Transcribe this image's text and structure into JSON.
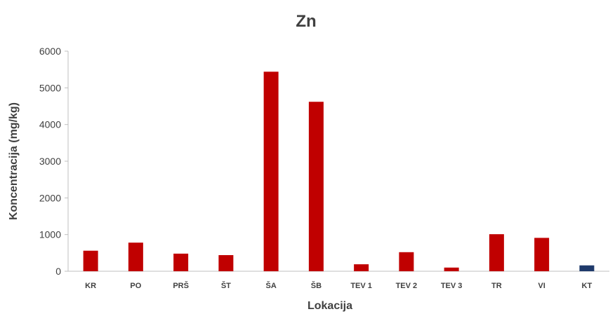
{
  "chart_data": {
    "type": "bar",
    "title": "Zn",
    "xlabel": "Lokacija",
    "ylabel": "Koncentracija (mg/kg)",
    "ylim": [
      0,
      6000
    ],
    "yticks": [
      0,
      1000,
      2000,
      3000,
      4000,
      5000,
      6000
    ],
    "ytick_labels": [
      "0",
      "1000",
      "2000",
      "3000",
      "4000",
      "5000",
      "6000"
    ],
    "categories": [
      "KR",
      "PO",
      "PRŠ",
      "ŠT",
      "ŠA",
      "ŠB",
      "TEV 1",
      "TEV 2",
      "TEV 3",
      "TR",
      "VI",
      "KT"
    ],
    "values": [
      560,
      780,
      480,
      440,
      5440,
      4620,
      190,
      520,
      100,
      1010,
      910,
      160
    ],
    "bar_colors": [
      "#c00000",
      "#c00000",
      "#c00000",
      "#c00000",
      "#c00000",
      "#c00000",
      "#c00000",
      "#c00000",
      "#c00000",
      "#c00000",
      "#c00000",
      "#1f3a6b"
    ],
    "grid": false,
    "legend": "none"
  }
}
